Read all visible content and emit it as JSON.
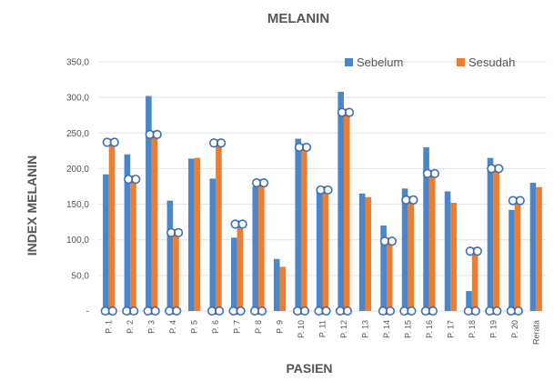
{
  "chart_data": {
    "type": "bar",
    "title": "MELANIN",
    "xlabel": "PASIEN",
    "ylabel": "INDEX MELANIN",
    "ylim": [
      0,
      350
    ],
    "y_ticks": [
      "-",
      "50,0",
      "100,0",
      "150,0",
      "200,0",
      "250,0",
      "300,0",
      "350,0"
    ],
    "grid": true,
    "legend_position": "top-right",
    "categories": [
      "P. 1",
      "P. 2",
      "P. 3",
      "P. 4",
      "P. 5",
      "P. 6",
      "P. 7",
      "P. 8",
      "P. 9",
      "P. 10",
      "P. 11",
      "P. 12",
      "P. 13",
      "P. 14",
      "P. 15",
      "P. 16",
      "P. 17",
      "P. 18",
      "P. 19",
      "P. 20",
      "Rerata"
    ],
    "series": [
      {
        "name": "Sebelum",
        "color": "#4a86c8",
        "values": [
          192,
          220,
          302,
          155,
          214,
          186,
          103,
          175,
          73,
          242,
          168,
          308,
          165,
          120,
          172,
          230,
          168,
          28,
          215,
          142,
          180
        ]
      },
      {
        "name": "Sesudah",
        "color": "#ed7d31",
        "values": [
          237,
          185,
          248,
          110,
          215,
          236,
          122,
          180,
          62,
          230,
          170,
          279,
          160,
          98,
          156,
          193,
          152,
          84,
          200,
          155,
          174
        ]
      }
    ],
    "annotations": {
      "type": "bubble-markers",
      "top_marker_at": "Sesudah bar tops",
      "baseline_marker_categories": [
        "P. 1",
        "P. 2",
        "P. 3",
        "P. 4",
        "P. 6",
        "P. 7",
        "P. 8",
        "P. 10",
        "P. 11",
        "P. 12",
        "P. 14",
        "P. 15",
        "P. 16",
        "P. 18",
        "P. 19",
        "P. 20"
      ],
      "top_marker_categories": [
        "P. 1",
        "P. 2",
        "P. 3",
        "P. 4",
        "P. 6",
        "P. 7",
        "P. 8",
        "P. 10",
        "P. 11",
        "P. 12",
        "P. 14",
        "P. 15",
        "P. 16",
        "P. 18",
        "P. 19",
        "P. 20"
      ]
    }
  }
}
